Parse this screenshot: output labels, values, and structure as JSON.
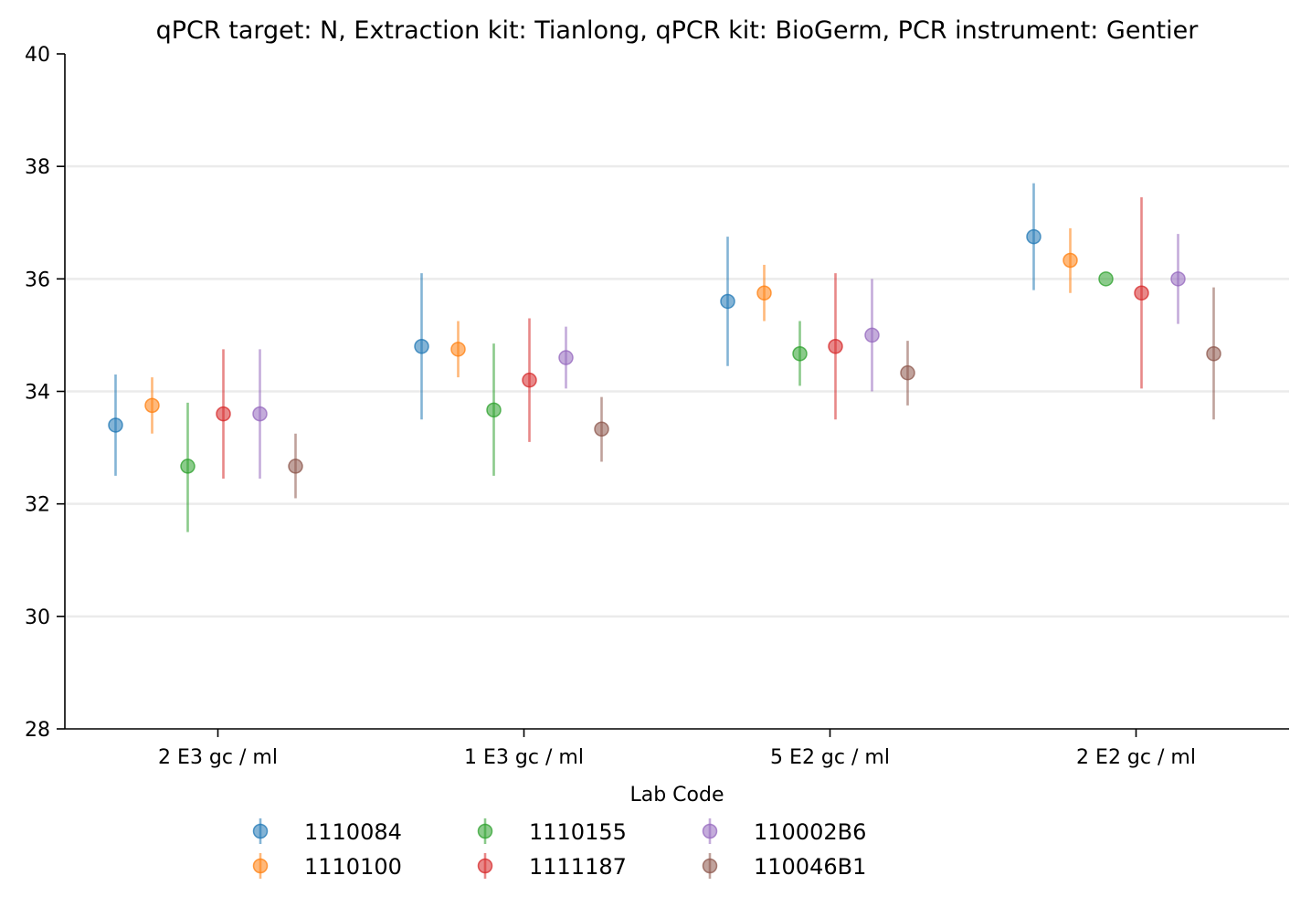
{
  "chart_data": {
    "type": "scatter",
    "title": "qPCR target: N, Extraction kit: Tianlong, qPCR kit: BioGerm, PCR instrument: Gentier",
    "xlabel": "",
    "ylabel": "",
    "ylim": [
      28,
      40
    ],
    "yticks": [
      28,
      30,
      32,
      34,
      36,
      38,
      40
    ],
    "grid": "horizontal",
    "categories": [
      "2 E3 gc / ml",
      "1 E3 gc / ml",
      "5 E2 gc / ml",
      "2 E2 gc / ml"
    ],
    "legend": {
      "title": "Lab Code",
      "placement": "bottom-center",
      "columns": 4
    },
    "series": [
      {
        "name": "1110084",
        "color": "#1f77b4",
        "values": [
          33.4,
          34.8,
          35.6,
          36.75
        ],
        "error_low": [
          32.5,
          33.5,
          34.45,
          35.8
        ],
        "error_high": [
          34.3,
          36.1,
          36.75,
          37.7
        ]
      },
      {
        "name": "1110100",
        "color": "#ff7f0e",
        "values": [
          33.75,
          34.75,
          35.75,
          36.33
        ],
        "error_low": [
          33.25,
          34.25,
          35.25,
          35.75
        ],
        "error_high": [
          34.25,
          35.25,
          36.25,
          36.9
        ]
      },
      {
        "name": "1110155",
        "color": "#2ca02c",
        "values": [
          32.67,
          33.67,
          34.67,
          36.0
        ],
        "error_low": [
          31.5,
          32.5,
          34.1,
          36.0
        ],
        "error_high": [
          33.8,
          34.85,
          35.25,
          36.0
        ]
      },
      {
        "name": "1111187",
        "color": "#d62728",
        "values": [
          33.6,
          34.2,
          34.8,
          35.75
        ],
        "error_low": [
          32.45,
          33.1,
          33.5,
          34.05
        ],
        "error_high": [
          34.75,
          35.3,
          36.1,
          37.45
        ]
      },
      {
        "name": "110002B6",
        "color": "#9467bd",
        "values": [
          33.6,
          34.6,
          35.0,
          36.0
        ],
        "error_low": [
          32.45,
          34.05,
          34.0,
          35.2
        ],
        "error_high": [
          34.75,
          35.15,
          36.0,
          36.8
        ]
      },
      {
        "name": "110046B1",
        "color": "#8c564b",
        "values": [
          32.67,
          33.33,
          34.33,
          34.67
        ],
        "error_low": [
          32.1,
          32.75,
          33.75,
          33.5
        ],
        "error_high": [
          33.25,
          33.9,
          34.9,
          35.85
        ]
      }
    ]
  }
}
